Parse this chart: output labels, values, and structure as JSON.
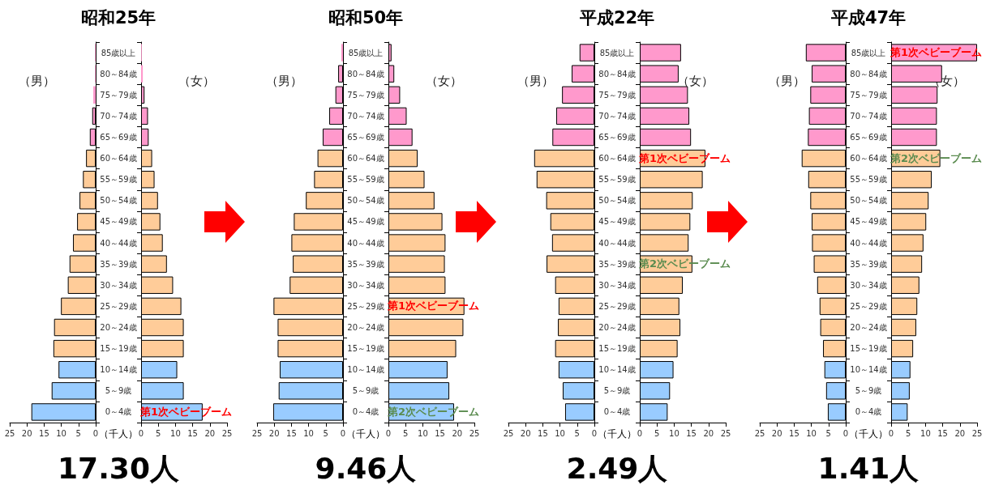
{
  "chart_data": [
    {
      "type": "bar",
      "orientation": "horizontal",
      "title": "昭和25年",
      "categories": [
        null,
        null,
        null,
        null,
        null,
        null,
        null,
        null,
        null,
        null,
        null,
        null,
        null,
        null,
        null,
        null,
        null,
        null
      ],
      "series": [
        {
          "name": "（男）",
          "colors": [
            "#ff99cc",
            "#ff99cc",
            "#ff99cc",
            "#ff99cc",
            "#ff99cc",
            "#ffcc99",
            "#ffcc99",
            "#ffcc99",
            "#ffcc99",
            "#ffcc99",
            "#ffcc99",
            "#ffcc99",
            "#ffcc99",
            "#ffcc99",
            "#ffcc99",
            "#99ccff",
            "#99ccff",
            "#99ccff"
          ],
          "values": [
            0.2,
            0.2,
            0.7,
            1.0,
            1.7,
            2.8,
            3.7,
            4.7,
            5.4,
            6.6,
            7.6,
            8.1,
            10.1,
            12.1,
            12.3,
            10.8,
            12.8,
            18.7
          ]
        }
      ],
      "xlim": [
        25,
        0
      ],
      "xticks": [
        25,
        20,
        15,
        10,
        5,
        0
      ],
      "annotations": [
        "17.30人"
      ]
    },
    {
      "type": "bar",
      "orientation": "horizontal",
      "xlabel": "（千人）",
      "categories": [
        "85歳以上",
        "80～84歳",
        "75～79歳",
        "70～74歳",
        "65～69歳",
        "60～64歳",
        "55～59歳",
        "50～54歳",
        "45～49歳",
        "40～44歳",
        "35～39歳",
        "30～34歳",
        "25～29歳",
        "20～24歳",
        "15～19歳",
        "10～14歳",
        "5～9歳",
        "0～4歳"
      ],
      "series": [
        {
          "name": "（女）",
          "colors": [
            "#ff99cc",
            "#ff99cc",
            "#ff99cc",
            "#ff99cc",
            "#ff99cc",
            "#ffcc99",
            "#ffcc99",
            "#ffcc99",
            "#ffcc99",
            "#ffcc99",
            "#ffcc99",
            "#ffcc99",
            "#ffcc99",
            "#ffcc99",
            "#ffcc99",
            "#99ccff",
            "#99ccff",
            "#99ccff"
          ],
          "values": [
            0.2,
            0.5,
            1.0,
            2.0,
            2.2,
            3.2,
            3.9,
            4.9,
            5.6,
            6.3,
            7.5,
            9.3,
            11.7,
            12.4,
            12.4,
            10.5,
            12.4,
            17.9
          ]
        }
      ],
      "xlim": [
        0,
        25
      ],
      "xticks": [
        0,
        5,
        10,
        15,
        20,
        25
      ],
      "annotations": [
        {
          "text": "第1次ベビーブーム",
          "y": "0～4歳"
        }
      ]
    },
    {
      "type": "bar",
      "orientation": "horizontal",
      "title": "昭和50年",
      "categories": [
        null,
        null,
        null,
        null,
        null,
        null,
        null,
        null,
        null,
        null,
        null,
        null,
        null,
        null,
        null,
        null,
        null,
        null
      ],
      "series": [
        {
          "name": "（男）",
          "colors": [
            "#ff99cc",
            "#ff99cc",
            "#ff99cc",
            "#ff99cc",
            "#ff99cc",
            "#ffcc99",
            "#ffcc99",
            "#ffcc99",
            "#ffcc99",
            "#ffcc99",
            "#ffcc99",
            "#ffcc99",
            "#ffcc99",
            "#ffcc99",
            "#ffcc99",
            "#99ccff",
            "#99ccff",
            "#99ccff"
          ],
          "values": [
            0.5,
            1.4,
            2.2,
            4.0,
            5.9,
            7.4,
            8.4,
            10.8,
            14.3,
            15.0,
            14.6,
            15.5,
            20.2,
            19.0,
            19.0,
            18.4,
            18.7,
            20.3
          ]
        }
      ],
      "xlim": [
        25,
        0
      ],
      "xticks": [
        25,
        20,
        15,
        10,
        5,
        0
      ],
      "annotations": [
        "9.46人"
      ]
    },
    {
      "type": "bar",
      "orientation": "horizontal",
      "xlabel": "（千人）",
      "categories": [
        "85歳以上",
        "80～84歳",
        "75～79歳",
        "70～74歳",
        "65～69歳",
        "60～64歳",
        "55～59歳",
        "50～54歳",
        "45～49歳",
        "40～44歳",
        "35～39歳",
        "30～34歳",
        "25～29歳",
        "20～24歳",
        "15～19歳",
        "10～14歳",
        "5～9歳",
        "0～4歳"
      ],
      "series": [
        {
          "name": "（女）",
          "colors": [
            "#ff99cc",
            "#ff99cc",
            "#ff99cc",
            "#ff99cc",
            "#ff99cc",
            "#ffcc99",
            "#ffcc99",
            "#ffcc99",
            "#ffcc99",
            "#ffcc99",
            "#ffcc99",
            "#ffcc99",
            "#ffcc99",
            "#ffcc99",
            "#ffcc99",
            "#99ccff",
            "#99ccff",
            "#99ccff"
          ],
          "values": [
            0.9,
            1.7,
            3.4,
            5.3,
            7.0,
            8.5,
            10.5,
            13.4,
            15.7,
            16.6,
            16.4,
            16.6,
            22.1,
            21.8,
            19.7,
            17.2,
            17.7,
            19.1
          ]
        }
      ],
      "xlim": [
        0,
        25
      ],
      "xticks": [
        0,
        5,
        10,
        15,
        20,
        25
      ],
      "annotations": [
        {
          "text": "第1次ベビーブーム",
          "y": "25～29歳"
        },
        {
          "text": "第2次ベビーブーム",
          "y": "0～4歳"
        }
      ]
    },
    {
      "type": "bar",
      "orientation": "horizontal",
      "title": "平成22年",
      "categories": [
        null,
        null,
        null,
        null,
        null,
        null,
        null,
        null,
        null,
        null,
        null,
        null,
        null,
        null,
        null,
        null,
        null,
        null
      ],
      "series": [
        {
          "name": "（男）",
          "colors": [
            "#ff99cc",
            "#ff99cc",
            "#ff99cc",
            "#ff99cc",
            "#ff99cc",
            "#ffcc99",
            "#ffcc99",
            "#ffcc99",
            "#ffcc99",
            "#ffcc99",
            "#ffcc99",
            "#ffcc99",
            "#ffcc99",
            "#ffcc99",
            "#ffcc99",
            "#99ccff",
            "#99ccff",
            "#99ccff"
          ],
          "values": [
            4.3,
            6.6,
            9.4,
            11.1,
            12.2,
            17.5,
            16.8,
            14.0,
            12.8,
            12.3,
            13.9,
            11.4,
            10.4,
            10.6,
            11.4,
            10.4,
            9.2,
            8.5
          ]
        }
      ],
      "xlim": [
        25,
        0
      ],
      "xticks": [
        25,
        20,
        15,
        10,
        5,
        0
      ],
      "annotations": [
        "2.49人"
      ]
    },
    {
      "type": "bar",
      "orientation": "horizontal",
      "xlabel": "（千人）",
      "categories": [
        "85歳以上",
        "80～84歳",
        "75～79歳",
        "70～74歳",
        "65～69歳",
        "60～64歳",
        "55～59歳",
        "50～54歳",
        "45～49歳",
        "40～44歳",
        "35～39歳",
        "30～34歳",
        "25～29歳",
        "20～24歳",
        "15～19歳",
        "10～14歳",
        "5～9歳",
        "0～4歳"
      ],
      "series": [
        {
          "name": "（女）",
          "colors": [
            "#ff99cc",
            "#ff99cc",
            "#ff99cc",
            "#ff99cc",
            "#ff99cc",
            "#ffcc99",
            "#ffcc99",
            "#ffcc99",
            "#ffcc99",
            "#ffcc99",
            "#ffcc99",
            "#ffcc99",
            "#ffcc99",
            "#ffcc99",
            "#ffcc99",
            "#99ccff",
            "#99ccff",
            "#99ccff"
          ],
          "values": [
            12.0,
            11.3,
            14.0,
            14.4,
            14.9,
            19.1,
            18.3,
            15.4,
            14.7,
            14.2,
            15.3,
            12.5,
            11.5,
            11.8,
            11.0,
            9.8,
            8.8,
            8.1
          ]
        }
      ],
      "xlim": [
        0,
        25
      ],
      "xticks": [
        0,
        5,
        10,
        15,
        20,
        25
      ],
      "annotations": [
        {
          "text": "第1次ベビーブーム",
          "y": "60～64歳"
        },
        {
          "text": "第2次ベビーブーム",
          "y": "35～39歳"
        }
      ]
    },
    {
      "type": "bar",
      "orientation": "horizontal",
      "title": "平成47年",
      "categories": [
        null,
        null,
        null,
        null,
        null,
        null,
        null,
        null,
        null,
        null,
        null,
        null,
        null,
        null,
        null,
        null,
        null,
        null
      ],
      "series": [
        {
          "name": "（男）",
          "colors": [
            "#ff99cc",
            "#ff99cc",
            "#ff99cc",
            "#ff99cc",
            "#ff99cc",
            "#ffcc99",
            "#ffcc99",
            "#ffcc99",
            "#ffcc99",
            "#ffcc99",
            "#ffcc99",
            "#ffcc99",
            "#ffcc99",
            "#ffcc99",
            "#ffcc99",
            "#99ccff",
            "#99ccff",
            "#99ccff"
          ],
          "values": [
            11.6,
            9.9,
            10.3,
            10.7,
            11.0,
            12.8,
            10.9,
            10.3,
            9.9,
            9.8,
            9.3,
            8.3,
            7.6,
            7.4,
            6.6,
            6.2,
            5.7,
            5.2
          ]
        }
      ],
      "xlim": [
        25,
        0
      ],
      "xticks": [
        25,
        20,
        15,
        10,
        5,
        0
      ],
      "annotations": [
        "1.41人"
      ]
    },
    {
      "type": "bar",
      "orientation": "horizontal",
      "xlabel": "（千人）",
      "categories": [
        "85歳以上",
        "80～84歳",
        "75～79歳",
        "70～74歳",
        "65～69歳",
        "60～64歳",
        "55～59歳",
        "50～54歳",
        "45～49歳",
        "40～44歳",
        "35～39歳",
        "30～34歳",
        "25～29歳",
        "20～24歳",
        "15～19歳",
        "10～14歳",
        "5～9歳",
        "0～4歳"
      ],
      "series": [
        {
          "name": "（女）",
          "colors": [
            "#ff99cc",
            "#ff99cc",
            "#ff99cc",
            "#ff99cc",
            "#ff99cc",
            "#ffcc99",
            "#ffcc99",
            "#ffcc99",
            "#ffcc99",
            "#ffcc99",
            "#ffcc99",
            "#ffcc99",
            "#ffcc99",
            "#ffcc99",
            "#ffcc99",
            "#99ccff",
            "#99ccff",
            "#99ccff"
          ],
          "values": [
            25,
            14.8,
            13.5,
            13.3,
            13.3,
            14.3,
            11.8,
            10.9,
            10.2,
            9.4,
            9.0,
            8.2,
            7.6,
            7.3,
            6.4,
            5.6,
            5.4,
            4.8
          ]
        }
      ],
      "xlim": [
        0,
        25
      ],
      "xticks": [
        0,
        5,
        10,
        15,
        20,
        25
      ],
      "annotations": [
        {
          "text": "第1次ベビーブーム",
          "y": "85歳以上"
        },
        {
          "text": "第2次ベビーブーム",
          "y": "60～64歳"
        }
      ]
    }
  ]
}
